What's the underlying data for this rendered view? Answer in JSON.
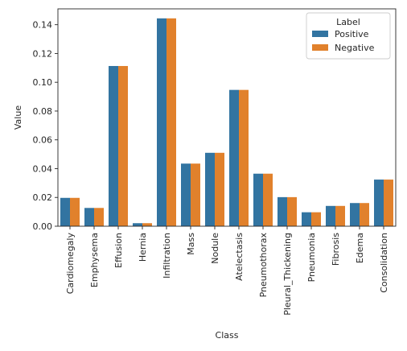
{
  "chart_data": {
    "type": "bar",
    "xlabel": "Class",
    "ylabel": "Value",
    "ylim": [
      0,
      0.151
    ],
    "yticks": [
      "0.00",
      "0.02",
      "0.04",
      "0.06",
      "0.08",
      "0.10",
      "0.12",
      "0.14"
    ],
    "grid": false,
    "legend": {
      "title": "Label",
      "placement": "top-right"
    },
    "categories": [
      "Cardiomegaly",
      "Emphysema",
      "Effusion",
      "Hernia",
      "Infiltration",
      "Mass",
      "Nodule",
      "Atelectasis",
      "Pneumothorax",
      "Pleural_Thickening",
      "Pneumonia",
      "Fibrosis",
      "Edema",
      "Consolidation"
    ],
    "series": [
      {
        "name": "Positive",
        "color": "#3274a1",
        "values": [
          0.0197,
          0.0127,
          0.1113,
          0.0021,
          0.1444,
          0.0435,
          0.051,
          0.0947,
          0.0365,
          0.0202,
          0.0097,
          0.0141,
          0.0161,
          0.0324
        ]
      },
      {
        "name": "Negative",
        "color": "#e1812c",
        "values": [
          0.0197,
          0.0127,
          0.1113,
          0.0021,
          0.1444,
          0.0435,
          0.051,
          0.0947,
          0.0365,
          0.0202,
          0.0097,
          0.0141,
          0.0161,
          0.0324
        ]
      }
    ]
  }
}
